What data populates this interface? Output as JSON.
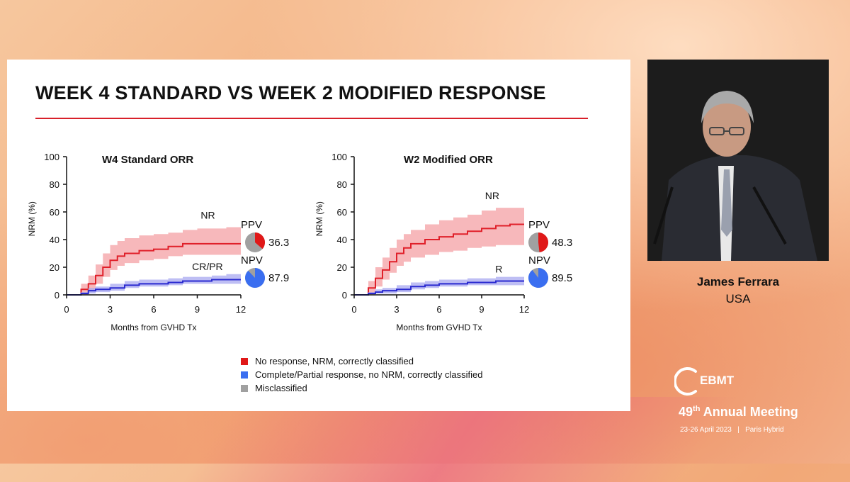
{
  "slide": {
    "title": "WEEK 4 STANDARD VS WEEK 2 MODIFIED RESPONSE"
  },
  "colors": {
    "accent_red": "#d8202a",
    "nr_line": "#e0202a",
    "nr_band": "#f4a0a4",
    "cr_line": "#2a2ad0",
    "cr_band": "#a8a8f0",
    "legend_red": "#e01818",
    "legend_blue": "#3a6ef0",
    "legend_gray": "#a0a0a0"
  },
  "chart_data": [
    {
      "type": "line",
      "title": "W4 Standard ORR",
      "xlabel": "Months from GVHD Tx",
      "ylabel": "NRM (%)",
      "xlim": [
        0,
        12
      ],
      "ylim": [
        0,
        100
      ],
      "xticks": [
        "0",
        "3",
        "6",
        "9",
        "12"
      ],
      "yticks": [
        "0",
        "20",
        "40",
        "60",
        "80",
        "100"
      ],
      "series": [
        {
          "name": "NR",
          "x": [
            0,
            1,
            1.5,
            2,
            2.5,
            3,
            3.5,
            4,
            5,
            6,
            7,
            8,
            9,
            10,
            11,
            12
          ],
          "y": [
            0,
            4,
            8,
            14,
            20,
            25,
            28,
            30,
            32,
            33,
            35,
            37,
            37,
            37,
            37,
            37
          ],
          "lower": [
            0,
            0,
            3,
            8,
            13,
            18,
            21,
            23,
            25,
            26,
            28,
            29,
            29,
            29,
            29,
            29
          ],
          "upper": [
            0,
            8,
            14,
            22,
            30,
            36,
            39,
            41,
            43,
            44,
            45,
            47,
            48,
            48,
            49,
            49
          ]
        },
        {
          "name": "CR/PR",
          "x": [
            0,
            1,
            1.5,
            2,
            3,
            4,
            5,
            6,
            7,
            8,
            9,
            10,
            11,
            12
          ],
          "y": [
            0,
            1,
            3,
            4,
            5,
            7,
            8,
            8,
            9,
            10,
            10,
            11,
            11,
            11
          ],
          "lower": [
            0,
            0,
            1,
            2,
            3,
            5,
            6,
            6,
            7,
            8,
            8,
            8,
            8,
            8
          ],
          "upper": [
            0,
            2,
            5,
            6,
            8,
            10,
            11,
            11,
            12,
            13,
            13,
            14,
            15,
            15
          ]
        }
      ],
      "pies": [
        {
          "label": "PPV",
          "value": "36.3",
          "correct_fraction": 0.363,
          "color": "#e01818"
        },
        {
          "label": "NPV",
          "value": "87.9",
          "correct_fraction": 0.879,
          "color": "#3a6ef0"
        }
      ]
    },
    {
      "type": "line",
      "title": "W2 Modified ORR",
      "xlabel": "Months from GVHD Tx",
      "ylabel": "NRM (%)",
      "xlim": [
        0,
        12
      ],
      "ylim": [
        0,
        100
      ],
      "xticks": [
        "0",
        "3",
        "6",
        "9",
        "12"
      ],
      "yticks": [
        "0",
        "20",
        "40",
        "60",
        "80",
        "100"
      ],
      "series": [
        {
          "name": "NR",
          "x": [
            0,
            1,
            1.5,
            2,
            2.5,
            3,
            3.5,
            4,
            5,
            6,
            7,
            8,
            9,
            10,
            11,
            12
          ],
          "y": [
            0,
            5,
            12,
            18,
            24,
            30,
            34,
            37,
            40,
            42,
            44,
            46,
            48,
            50,
            51,
            51
          ],
          "lower": [
            0,
            0,
            6,
            11,
            16,
            21,
            24,
            27,
            29,
            31,
            32,
            34,
            35,
            36,
            36,
            36
          ],
          "upper": [
            0,
            10,
            20,
            27,
            34,
            40,
            44,
            47,
            51,
            54,
            56,
            58,
            61,
            63,
            63,
            63
          ]
        },
        {
          "name": "R",
          "x": [
            0,
            1,
            1.5,
            2,
            3,
            4,
            5,
            6,
            7,
            8,
            9,
            10,
            11,
            12
          ],
          "y": [
            0,
            1,
            2,
            3,
            4,
            6,
            7,
            8,
            8,
            9,
            9,
            10,
            10,
            10
          ],
          "lower": [
            0,
            0,
            1,
            1,
            2,
            4,
            5,
            6,
            6,
            7,
            7,
            7,
            7,
            7
          ],
          "upper": [
            0,
            2,
            4,
            5,
            7,
            9,
            10,
            11,
            11,
            12,
            12,
            13,
            13,
            13
          ]
        }
      ],
      "pies": [
        {
          "label": "PPV",
          "value": "48.3",
          "correct_fraction": 0.483,
          "color": "#e01818"
        },
        {
          "label": "NPV",
          "value": "89.5",
          "correct_fraction": 0.895,
          "color": "#3a6ef0"
        }
      ]
    }
  ],
  "legend": {
    "items": [
      {
        "label": "No response, NRM, correctly classified",
        "color": "#e01818"
      },
      {
        "label": "Complete/Partial response, no NRM, correctly classified",
        "color": "#3a6ef0"
      },
      {
        "label": "Misclassified",
        "color": "#a0a0a0"
      }
    ]
  },
  "speaker": {
    "name": "James Ferrara",
    "country": "USA"
  },
  "event": {
    "brand": "EBMT",
    "edition_number": "49",
    "edition_suffix": "th",
    "meeting": "Annual Meeting",
    "dates": "23-26 April 2023",
    "separator": "|",
    "location": "Paris Hybrid"
  }
}
